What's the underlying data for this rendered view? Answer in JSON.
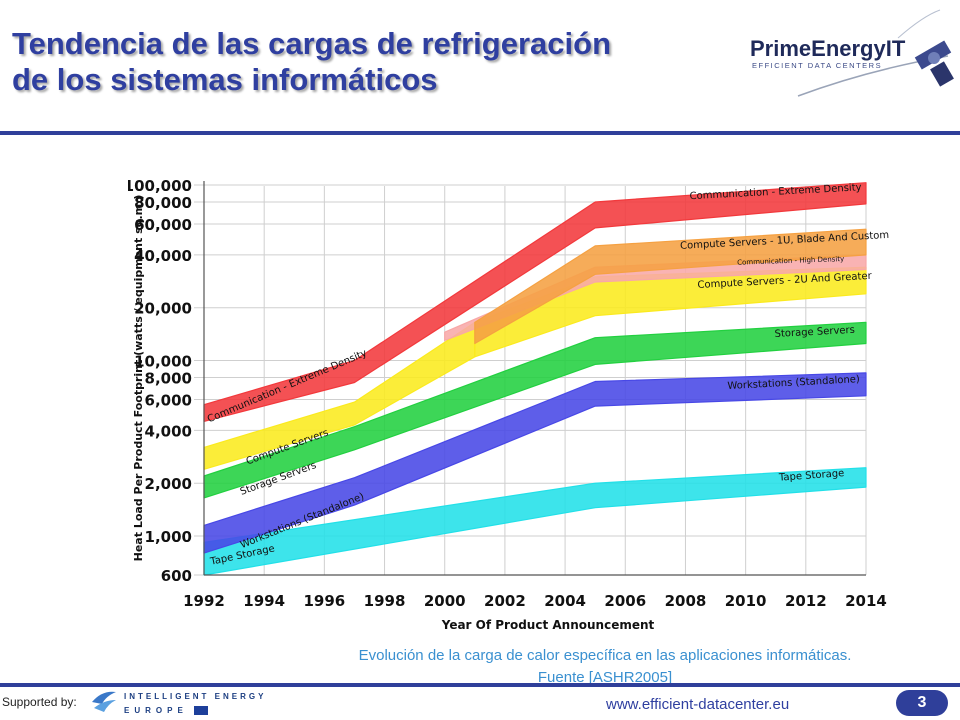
{
  "slide": {
    "title_line1": "Tendencia de las cargas de refrigeración",
    "title_line2": "de los sistemas informáticos",
    "logo_text": "PrimeEnergyIT",
    "logo_subtext": "EFFICIENT DATA CENTERS",
    "caption_line1": "Evolución de la carga de calor específica en las aplicaciones informáticas.",
    "caption_line2": "Fuente [ASHR2005]",
    "supported_by": "Supported by:",
    "iee_line1": "INTELLIGENT ENERGY",
    "iee_line2": "EUROPE",
    "website": "www.efficient-datacenter.eu",
    "page_number": "3"
  },
  "colors": {
    "title": "#2f3fa0",
    "rule": "#2f3f9a",
    "caption": "#3a90d0"
  },
  "chart_data": {
    "type": "area",
    "y_scale": "log",
    "xlabel": "Year Of Product Announcement",
    "ylabel": "Heat Load Per Product Footprint (watts / equipment sq.m.)",
    "xlim": [
      1992,
      2014
    ],
    "ylim": [
      600,
      100000
    ],
    "x_ticks": [
      1992,
      1994,
      1996,
      1998,
      2000,
      2002,
      2004,
      2006,
      2008,
      2010,
      2012,
      2014
    ],
    "x_tick_labels": [
      "1992",
      "1994",
      "1996",
      "1998",
      "2000",
      "2002",
      "2004",
      "2006",
      "2008",
      "2010",
      "2012",
      "2014"
    ],
    "y_ticks": [
      600,
      1000,
      2000,
      4000,
      6000,
      8000,
      10000,
      20000,
      40000,
      60000,
      80000,
      100000
    ],
    "y_tick_labels": [
      "600",
      "1,000",
      "2,000",
      "4,000",
      "6,000",
      "8,000",
      "10,000",
      "20,000",
      "40,000",
      "60,000",
      "80,000",
      "100,000"
    ],
    "grid": true,
    "series": [
      {
        "name": "Tape Storage",
        "color": "#22e0e8",
        "upper": [
          [
            1992,
            920
          ],
          [
            2005,
            2000
          ],
          [
            2014,
            2450
          ]
        ],
        "lower": [
          [
            1992,
            600
          ],
          [
            2005,
            1450
          ],
          [
            2014,
            1900
          ]
        ]
      },
      {
        "name": "Workstations (Standalone)",
        "color": "#4848e6",
        "upper": [
          [
            1992,
            1150
          ],
          [
            1997,
            2150
          ],
          [
            2005,
            7600
          ],
          [
            2014,
            8500
          ]
        ],
        "lower": [
          [
            1992,
            800
          ],
          [
            1997,
            1500
          ],
          [
            2005,
            5500
          ],
          [
            2014,
            6300
          ]
        ]
      },
      {
        "name": "Storage Servers",
        "color": "#22d040",
        "upper": [
          [
            1992,
            2200
          ],
          [
            1997,
            4200
          ],
          [
            2005,
            13500
          ],
          [
            2014,
            16500
          ]
        ],
        "lower": [
          [
            1992,
            1650
          ],
          [
            1997,
            3100
          ],
          [
            2005,
            9500
          ],
          [
            2014,
            12500
          ]
        ]
      },
      {
        "name": "Compute Servers",
        "color": "#fbea1e",
        "upper": [
          [
            1992,
            3200
          ],
          [
            1997,
            5800
          ],
          [
            2001,
            16500
          ]
        ],
        "lower": [
          [
            1992,
            2400
          ],
          [
            1997,
            4300
          ],
          [
            2001,
            10500
          ]
        ]
      },
      {
        "name": "Compute Servers - 2U And Greater",
        "color": "#fbea1e",
        "upper": [
          [
            2001,
            16500
          ],
          [
            2005,
            30000
          ],
          [
            2014,
            34000
          ]
        ],
        "lower": [
          [
            2001,
            10500
          ],
          [
            2005,
            18000
          ],
          [
            2014,
            24000
          ]
        ]
      },
      {
        "name": "Communication - High Density",
        "color": "#f8a8a8",
        "upper": [
          [
            2000,
            14500
          ],
          [
            2005,
            34000
          ],
          [
            2014,
            40000
          ]
        ],
        "lower": [
          [
            2000,
            13000
          ],
          [
            2005,
            28000
          ],
          [
            2014,
            33000
          ]
        ]
      },
      {
        "name": "Compute Servers - 1U, Blade And Custom",
        "color": "#f5a142",
        "upper": [
          [
            2001,
            16500
          ],
          [
            2005,
            45000
          ],
          [
            2014,
            56000
          ]
        ],
        "lower": [
          [
            2001,
            12500
          ],
          [
            2005,
            31000
          ],
          [
            2014,
            40000
          ]
        ]
      },
      {
        "name": "Communication - Extreme Density",
        "color": "#f2393c",
        "upper": [
          [
            1992,
            5600
          ],
          [
            1997,
            10000
          ],
          [
            2005,
            80000
          ],
          [
            2014,
            103000
          ]
        ],
        "lower": [
          [
            1992,
            4500
          ],
          [
            1997,
            7500
          ],
          [
            2005,
            57000
          ],
          [
            2014,
            78000
          ]
        ]
      }
    ],
    "band_labels": [
      {
        "text": "Communication - Extreme Density",
        "x": 2011,
        "y": 88000,
        "angle": -3,
        "size": 10
      },
      {
        "text": "Communication - Extreme Density",
        "x": 1994.8,
        "y": 6900,
        "angle": -23,
        "size": 10
      },
      {
        "text": "Compute Servers - 1U, Blade And Custom",
        "x": 2011.3,
        "y": 46500,
        "angle": -3,
        "size": 10
      },
      {
        "text": "Communication - High Density",
        "x": 2011.5,
        "y": 36000,
        "angle": -2,
        "size": 7
      },
      {
        "text": "Compute Servers - 2U And Greater",
        "x": 2011.3,
        "y": 27500,
        "angle": -3,
        "size": 10
      },
      {
        "text": "Storage Servers",
        "x": 2012.3,
        "y": 14000,
        "angle": -3,
        "size": 10
      },
      {
        "text": "Workstations (Standalone)",
        "x": 2011.6,
        "y": 7200,
        "angle": -3,
        "size": 10
      },
      {
        "text": "Tape Storage",
        "x": 2012.2,
        "y": 2130,
        "angle": -4,
        "size": 10
      },
      {
        "text": "Compute Servers",
        "x": 1994.8,
        "y": 3100,
        "angle": -20,
        "size": 10
      },
      {
        "text": "Storage Servers",
        "x": 1994.5,
        "y": 2050,
        "angle": -20,
        "size": 10
      },
      {
        "text": "Workstations (Standalone)",
        "x": 1995.3,
        "y": 1180,
        "angle": -22,
        "size": 10
      },
      {
        "text": "Tape Storage",
        "x": 1993.3,
        "y": 750,
        "angle": -12,
        "size": 10
      }
    ]
  }
}
